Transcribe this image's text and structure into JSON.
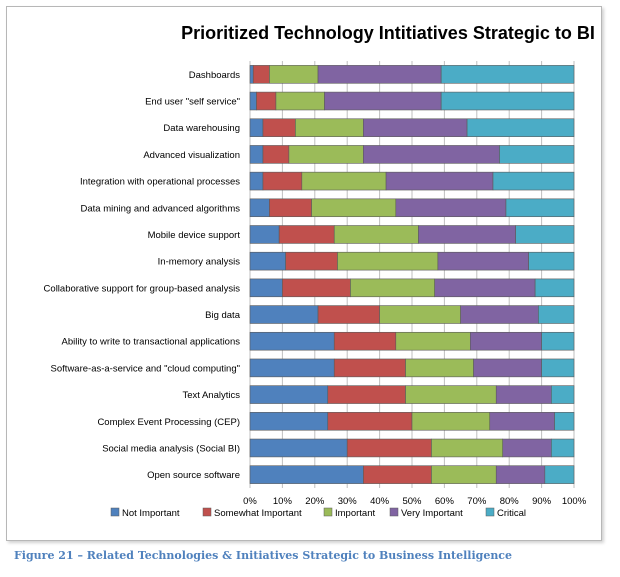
{
  "chart_data": {
    "type": "bar",
    "orientation": "horizontal",
    "stacked": "percent",
    "title": "Prioritized Technology Intitiatives Strategic to BI",
    "categories": [
      "Dashboards",
      "End user \"self service\"",
      "Data warehousing",
      "Advanced visualization",
      "Integration with operational processes",
      "Data mining and advanced algorithms",
      "Mobile device support",
      "In-memory analysis",
      "Collaborative support for group-based analysis",
      "Big data",
      "Ability to write to transactional applications",
      "Software-as-a-service and \"cloud computing\"",
      "Text Analytics",
      "Complex Event Processing (CEP)",
      "Social media analysis (Social BI)",
      "Open source software"
    ],
    "series": [
      {
        "name": "Not Important",
        "color": "#4f81bd",
        "values": [
          1,
          2,
          4,
          4,
          4,
          6,
          9,
          11,
          10,
          21,
          26,
          26,
          24,
          24,
          30,
          35
        ]
      },
      {
        "name": "Somewhat Important",
        "color": "#c0504d",
        "values": [
          5,
          6,
          10,
          8,
          12,
          13,
          17,
          16,
          21,
          19,
          19,
          22,
          24,
          26,
          26,
          21
        ]
      },
      {
        "name": "Important",
        "color": "#9bbb59",
        "values": [
          15,
          15,
          21,
          23,
          26,
          26,
          26,
          31,
          26,
          25,
          23,
          21,
          28,
          24,
          22,
          20
        ]
      },
      {
        "name": "Very Important",
        "color": "#8064a2",
        "values": [
          38,
          36,
          32,
          42,
          33,
          34,
          30,
          28,
          31,
          24,
          22,
          21,
          17,
          20,
          15,
          15
        ]
      },
      {
        "name": "Critical",
        "color": "#4bacc6",
        "values": [
          41,
          41,
          33,
          23,
          25,
          21,
          18,
          14,
          12,
          11,
          10,
          10,
          7,
          6,
          7,
          9
        ]
      }
    ],
    "xlim": [
      0,
      100
    ],
    "x_ticks": [
      "0%",
      "10%",
      "20%",
      "30%",
      "40%",
      "50%",
      "60%",
      "70%",
      "80%",
      "90%",
      "100%"
    ],
    "grid": "vertical",
    "legend": "bottom",
    "xlabel": "",
    "ylabel": ""
  },
  "caption": "Figure 21 – Related Technologies & Initiatives Strategic to Business Intelligence"
}
